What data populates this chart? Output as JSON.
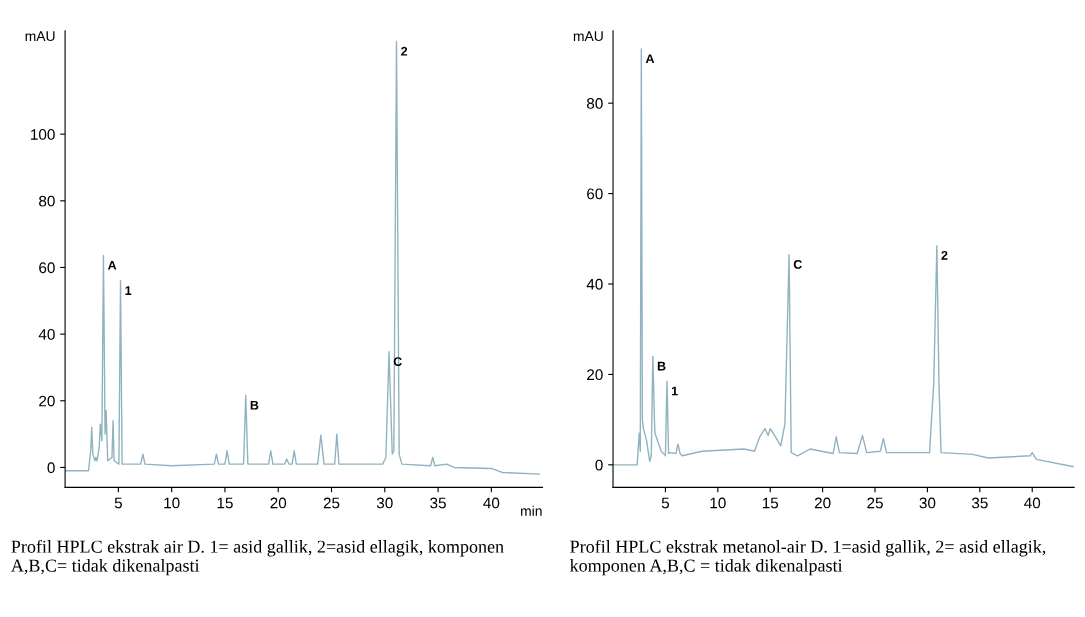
{
  "chart_data": [
    {
      "type": "line",
      "ylabel": "mAU",
      "xlabel": "min",
      "xlim": [
        0,
        44.8
      ],
      "ylim": [
        -6,
        131
      ],
      "xticks": [
        5,
        10,
        15,
        20,
        25,
        30,
        35,
        40
      ],
      "yticks": [
        0,
        20,
        40,
        60,
        80,
        100
      ],
      "grid": false,
      "legend": false,
      "marker": "none",
      "line_style": "solid",
      "series": [
        {
          "color": "#8fb3c0",
          "x": [
            0,
            2.2,
            2.4,
            2.5,
            2.6,
            2.8,
            2.9,
            3.0,
            3.2,
            3.3,
            3.45,
            3.6,
            3.75,
            3.85,
            4.0,
            4.4,
            4.5,
            4.6,
            5.05,
            5.2,
            5.35,
            6,
            7.1,
            7.3,
            7.5,
            10,
            14.0,
            14.2,
            14.4,
            15.0,
            15.2,
            15.4,
            16.75,
            16.95,
            17.15,
            19.1,
            19.3,
            19.5,
            20.6,
            20.8,
            21.0,
            21.3,
            21.5,
            21.7,
            23.7,
            24.0,
            24.3,
            25.3,
            25.5,
            25.7,
            29.8,
            30.1,
            30.4,
            30.7,
            30.85,
            31.1,
            31.35,
            31.6,
            34.3,
            34.5,
            34.7,
            35.8,
            36.5,
            40,
            41,
            44.5
          ],
          "values": [
            -1,
            -1,
            5,
            12,
            4,
            2,
            3,
            2,
            6,
            13,
            8,
            63.6,
            10,
            17,
            2,
            3,
            14,
            2,
            1,
            56,
            1,
            1,
            1,
            4,
            1,
            0.5,
            1,
            4,
            1,
            1,
            5,
            1,
            1,
            21.6,
            1,
            1,
            5,
            1,
            1,
            2.5,
            1,
            1,
            5,
            1,
            1,
            9.7,
            1,
            1,
            10,
            1,
            1,
            3,
            34.7,
            4,
            5,
            127.8,
            4,
            1,
            0.5,
            3,
            0.5,
            1,
            0,
            -0.3,
            -1.5,
            -2
          ]
        }
      ],
      "annotations": [
        {
          "text": "A",
          "x": 3.6,
          "y": 63.6
        },
        {
          "text": "1",
          "x": 5.2,
          "y": 56
        },
        {
          "text": "B",
          "x": 16.95,
          "y": 21.6
        },
        {
          "text": "C",
          "x": 30.4,
          "y": 34.7
        },
        {
          "text": "2",
          "x": 31.1,
          "y": 127.8
        },
        "Profil HPLC ekstrak air D. 1= asid gallik, 2=asid ellagik, komponen A,B,C= tidak dikenalpasti"
      ]
    },
    {
      "type": "line",
      "ylabel": "mAU",
      "xlim": [
        0,
        44
      ],
      "ylim": [
        -5,
        96
      ],
      "xticks": [
        5,
        10,
        15,
        20,
        25,
        30,
        35,
        40
      ],
      "yticks": [
        0,
        20,
        40,
        60,
        80
      ],
      "grid": false,
      "legend": false,
      "marker": "none",
      "line_style": "solid",
      "series": [
        {
          "color": "#8fb3c0",
          "x": [
            0,
            2.3,
            2.5,
            2.6,
            2.7,
            2.8,
            2.9,
            3.2,
            3.5,
            3.65,
            3.8,
            3.95,
            4.0,
            4.6,
            4.9,
            5.0,
            5.15,
            5.3,
            5.4,
            6.0,
            6.2,
            6.4,
            6.6,
            8.5,
            12.5,
            13.5,
            14.0,
            14.5,
            14.8,
            15.0,
            15.5,
            16.0,
            16.4,
            16.8,
            17.0,
            17.6,
            18.8,
            21.0,
            21.3,
            21.6,
            23.3,
            23.8,
            24.2,
            25.5,
            25.8,
            26.1,
            30.2,
            30.6,
            30.9,
            31.1,
            31.3,
            34.3,
            35.8,
            39.8,
            40.0,
            40.4,
            43.9
          ],
          "values": [
            0,
            0,
            7,
            3,
            92,
            10,
            8,
            5.4,
            0.8,
            2,
            24,
            10,
            7,
            3,
            2.3,
            2,
            18.5,
            2.5,
            2.7,
            2.5,
            4.6,
            2.5,
            2,
            3,
            3.5,
            3,
            6.2,
            8,
            6.5,
            8,
            6.2,
            4.2,
            9,
            46.5,
            2.7,
            2,
            3.5,
            2.5,
            6.2,
            2.7,
            2.5,
            6.5,
            2.7,
            3,
            5.8,
            2.7,
            2.7,
            18,
            48.5,
            18,
            2.7,
            2.3,
            1.5,
            2,
            2.7,
            1.2,
            -0.4
          ]
        }
      ],
      "annotations": [
        {
          "text": "A",
          "x": 2.7,
          "y": 92
        },
        {
          "text": "B",
          "x": 3.8,
          "y": 24
        },
        {
          "text": "1",
          "x": 5.15,
          "y": 18.5
        },
        {
          "text": "C",
          "x": 16.8,
          "y": 46.5
        },
        {
          "text": "2",
          "x": 30.9,
          "y": 48.5
        },
        "Profil HPLC ekstrak metanol-air D. 1=asid gallik, 2= asid ellagik, komponen A,B,C = tidak dikenalpasti"
      ]
    }
  ]
}
